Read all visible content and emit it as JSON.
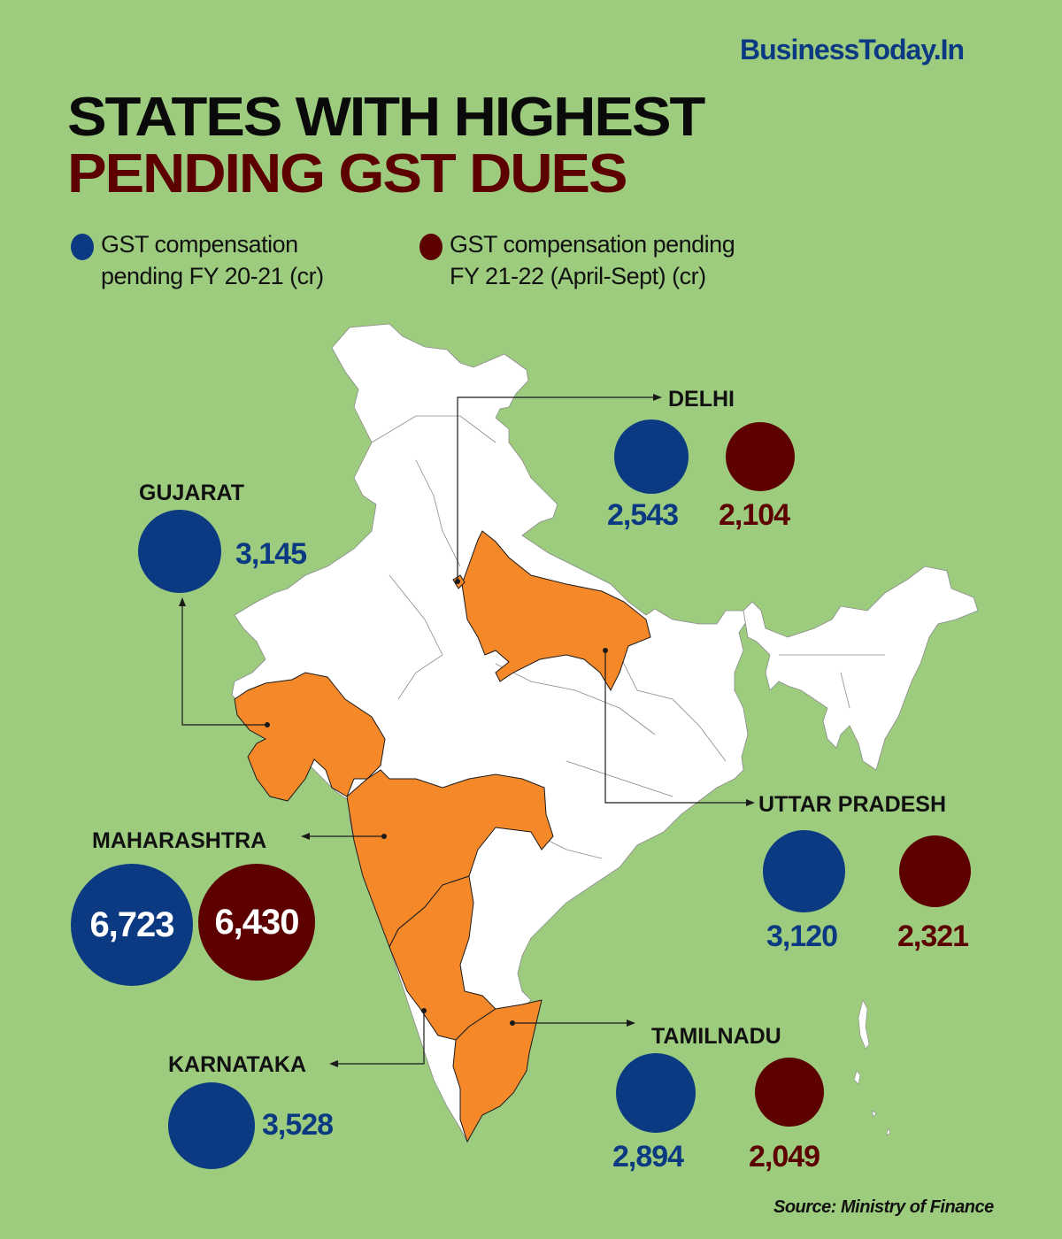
{
  "brand": "BusinessToday.In",
  "title": {
    "line1": "STATES WITH HIGHEST",
    "line2": "PENDING GST DUES"
  },
  "colors": {
    "background": "#9dcc7f",
    "fy2021": "#0b3a82",
    "fy2122": "#5c0000",
    "highlight_state": "#f5892a",
    "map_land": "#ffffff"
  },
  "legend": [
    {
      "line1": "GST compensation",
      "line2": "pending FY 20-21 (cr)",
      "color": "#0b3a82"
    },
    {
      "line1": "GST compensation pending",
      "line2": "FY 21-22 (April-Sept) (cr)",
      "color": "#5c0000"
    }
  ],
  "source": "Source: Ministry of Finance",
  "chart_data": {
    "type": "bubble-map",
    "title": "STATES WITH HIGHEST PENDING GST DUES",
    "units": "cr",
    "series": [
      {
        "name": "GST compensation pending FY 20-21 (cr)"
      },
      {
        "name": "GST compensation pending FY 21-22 (April-Sept) (cr)"
      }
    ],
    "states": [
      {
        "name": "DELHI",
        "fy2021": "2,543",
        "fy2122": "2,104"
      },
      {
        "name": "GUJARAT",
        "fy2021": "3,145",
        "fy2122": null
      },
      {
        "name": "UTTAR PRADESH",
        "fy2021": "3,120",
        "fy2122": "2,321"
      },
      {
        "name": "MAHARASHTRA",
        "fy2021": "6,723",
        "fy2122": "6,430"
      },
      {
        "name": "KARNATAKA",
        "fy2021": "3,528",
        "fy2122": null
      },
      {
        "name": "TAMILNADU",
        "fy2021": "2,894",
        "fy2122": "2,049"
      }
    ]
  }
}
